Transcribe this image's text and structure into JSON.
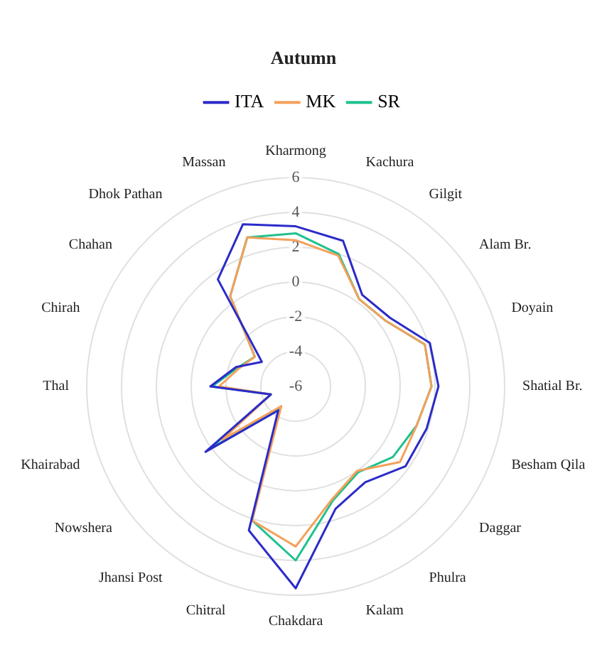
{
  "chart_data": {
    "type": "radar",
    "title": "Autumn",
    "categories": [
      "Kharmong",
      "Kachura",
      "Gilgit",
      "Alam Br.",
      "Doyain",
      "Shatial Br.",
      "Besham Qila",
      "Daggar",
      "Phulra",
      "Kalam",
      "Chakdara",
      "Chitral",
      "Jhansi Post",
      "Nowshera",
      "Khairabad",
      "Thal",
      "Chirah",
      "Chahan",
      "Dhok Pathan",
      "Massan"
    ],
    "series": [
      {
        "name": "ITA",
        "color": "#2b2bc8",
        "values": [
          3.2,
          2.8,
          0.5,
          0.7,
          2.1,
          2.2,
          1.9,
          1.8,
          0.8,
          1.4,
          5.6,
          2.7,
          -4.3,
          0.4,
          -4.5,
          -1.1,
          -2.4,
          -3.6,
          1.6,
          3.8
        ]
      },
      {
        "name": "MK",
        "color": "#f5a05a",
        "values": [
          2.4,
          1.9,
          0.2,
          0.4,
          1.8,
          1.8,
          1.3,
          1.4,
          0.0,
          0.8,
          3.2,
          2.1,
          -4.6,
          -0.8,
          -4.5,
          -1.6,
          -2.6,
          -3.1,
          0.4,
          3.0
        ]
      },
      {
        "name": "SR",
        "color": "#20c090",
        "values": [
          2.8,
          2.0,
          0.2,
          0.4,
          1.8,
          1.8,
          1.3,
          0.9,
          0.1,
          0.9,
          4.0,
          2.1,
          -4.5,
          0.2,
          -4.5,
          -1.2,
          -2.5,
          -3.1,
          0.4,
          3.0
        ]
      }
    ],
    "ylim": [
      -6,
      6
    ],
    "yticks": [
      -6,
      -4,
      -2,
      0,
      2,
      4,
      6
    ],
    "grid": true,
    "legend": "top",
    "marker": "none",
    "line_style": "solid"
  }
}
